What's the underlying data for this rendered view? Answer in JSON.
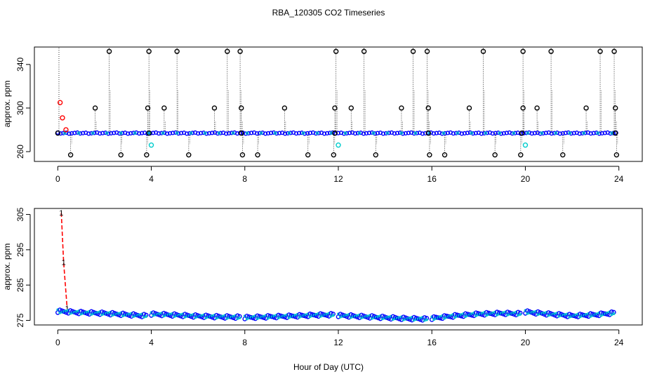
{
  "chart_data": [
    {
      "type": "scatter",
      "title": "RBA_120305  CO2 Timeseries",
      "xlabel": "",
      "ylabel": "approx. ppm",
      "xlim": [
        -1.0,
        25.0
      ],
      "ylim": [
        251,
        356
      ],
      "xticks": [
        0,
        4,
        8,
        12,
        16,
        20,
        24
      ],
      "yticks": [
        260,
        300,
        340
      ],
      "baseline": 277,
      "colors": {
        "spike": "#000000",
        "baseline": "#0000ff",
        "minor": "#00cccc",
        "start": "#ff0000"
      },
      "series": [
        {
          "name": "high spikes",
          "x": [
            2.2,
            3.9,
            5.1,
            7.25,
            7.8,
            11.9,
            13.1,
            15.2,
            15.8,
            18.2,
            19.9,
            21.1,
            23.2,
            23.8
          ],
          "y": [
            352,
            352,
            352,
            352,
            352,
            352,
            352,
            352,
            352,
            352,
            352,
            352,
            352,
            352
          ]
        },
        {
          "name": "mid spikes",
          "x": [
            1.6,
            3.85,
            4.55,
            6.7,
            7.85,
            9.7,
            11.85,
            12.55,
            14.7,
            15.85,
            17.6,
            19.9,
            20.5,
            22.6,
            23.85
          ],
          "y": [
            300,
            300,
            300,
            300,
            300,
            300,
            300,
            300,
            300,
            300,
            300,
            300,
            300,
            300,
            300
          ]
        },
        {
          "name": "low dips",
          "x": [
            0.55,
            2.7,
            3.8,
            5.6,
            7.9,
            8.55,
            10.7,
            11.8,
            13.6,
            15.9,
            16.55,
            18.7,
            19.8,
            21.6,
            23.9
          ],
          "y": [
            257,
            257,
            257,
            257,
            257,
            257,
            257,
            257,
            257,
            257,
            257,
            257,
            257,
            257,
            257
          ]
        },
        {
          "name": "cyan dips",
          "x": [
            4.0,
            12.0,
            20.0
          ],
          "y": [
            266,
            266,
            266
          ]
        },
        {
          "name": "start (red)",
          "x": [
            0.1,
            0.2,
            0.35
          ],
          "y": [
            305,
            291,
            280
          ]
        }
      ]
    },
    {
      "type": "line",
      "title": "",
      "xlabel": "Hour of Day (UTC)",
      "ylabel": "approx. ppm",
      "xlim": [
        -1.0,
        25.0
      ],
      "ylim": [
        273.7,
        306.7
      ],
      "xticks": [
        0,
        4,
        8,
        12,
        16,
        20,
        24
      ],
      "yticks": [
        275,
        285,
        295,
        305
      ],
      "marker_label": "1",
      "colors": {
        "start": "#ff0000",
        "band": "#0000ff",
        "band_inner": "#00cccc"
      },
      "series": [
        {
          "name": "start (red)",
          "x": [
            0.15,
            0.25,
            0.4
          ],
          "y": [
            305.5,
            291.5,
            278.5
          ]
        },
        {
          "name": "block 1",
          "x": [
            0.0,
            1.0,
            2.0,
            3.0,
            3.8
          ],
          "y": [
            277.6,
            277.2,
            277.0,
            276.6,
            276.3
          ]
        },
        {
          "name": "block 2",
          "x": [
            4.0,
            5.0,
            6.0,
            7.0,
            7.8
          ],
          "y": [
            276.8,
            276.5,
            276.2,
            276.0,
            275.9
          ]
        },
        {
          "name": "block 3",
          "x": [
            8.0,
            9.0,
            10.0,
            11.0,
            11.8
          ],
          "y": [
            275.8,
            276.0,
            276.2,
            276.5,
            276.6
          ]
        },
        {
          "name": "block 4",
          "x": [
            12.0,
            13.0,
            14.0,
            15.0,
            15.8
          ],
          "y": [
            276.4,
            276.1,
            275.8,
            275.5,
            275.4
          ]
        },
        {
          "name": "block 5",
          "x": [
            16.0,
            17.0,
            18.0,
            19.0,
            19.8
          ],
          "y": [
            275.6,
            276.3,
            276.8,
            277.0,
            276.9
          ]
        },
        {
          "name": "block 6",
          "x": [
            20.0,
            21.0,
            22.0,
            23.0,
            23.8
          ],
          "y": [
            277.4,
            276.8,
            276.3,
            276.6,
            277.1
          ]
        }
      ]
    }
  ]
}
